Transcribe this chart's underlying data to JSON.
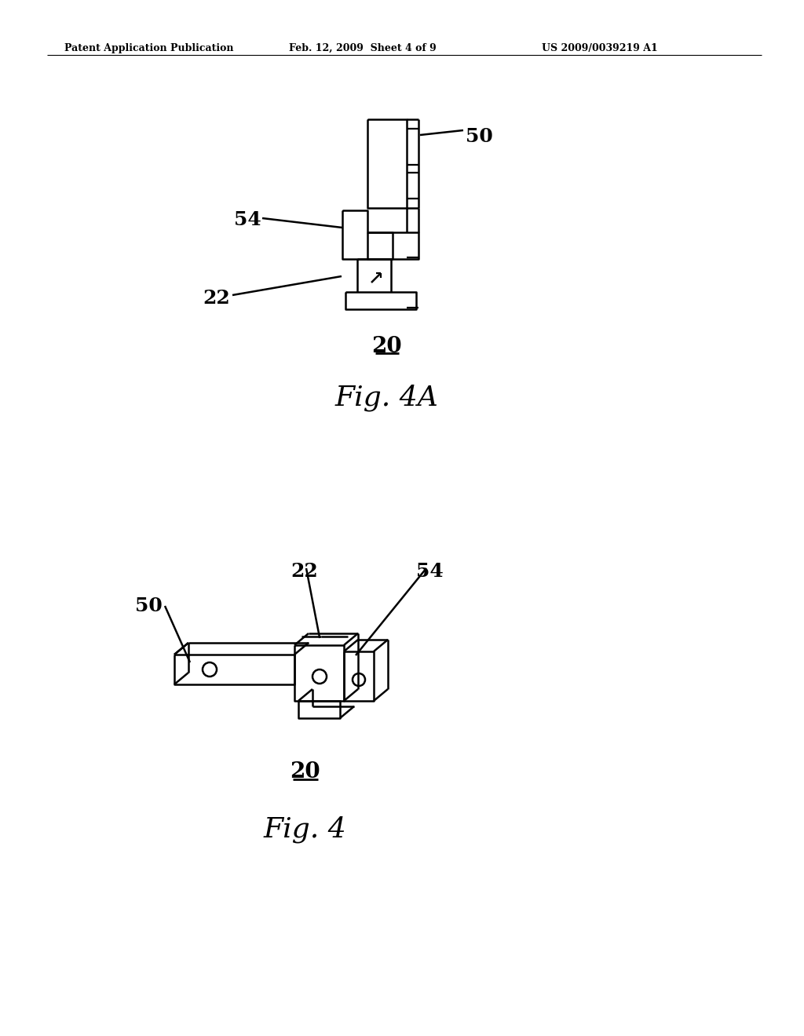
{
  "background_color": "#ffffff",
  "header_left": "Patent Application Publication",
  "header_center": "Feb. 12, 2009  Sheet 4 of 9",
  "header_right": "US 2009/0039219 A1",
  "fig4a_title": "Fig. 4A",
  "fig4_title": "Fig. 4",
  "line_color": "#000000",
  "line_width": 1.8
}
